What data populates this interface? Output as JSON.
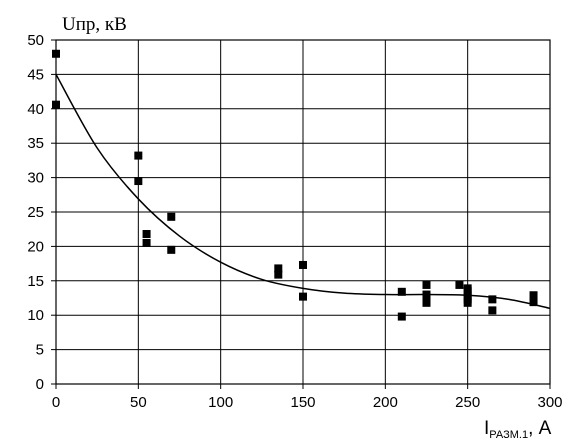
{
  "chart_data": {
    "type": "scatter",
    "ylabel": "Uпр, кВ",
    "xlabel_main": "I",
    "xlabel_sub": "РАЗМ.1",
    "xlabel_unit": ", A",
    "xlim": [
      0,
      300
    ],
    "ylim": [
      0,
      50
    ],
    "x_ticks": [
      "0",
      "50",
      "100",
      "150",
      "200",
      "250",
      "300"
    ],
    "y_ticks": [
      "0",
      "5",
      "10",
      "15",
      "20",
      "25",
      "30",
      "35",
      "40",
      "45",
      "50"
    ],
    "grid": true,
    "series": [
      {
        "type": "scatter",
        "marker": "square",
        "points": [
          [
            0,
            48
          ],
          [
            0,
            40.6
          ],
          [
            50,
            33.2
          ],
          [
            50,
            29.5
          ],
          [
            55,
            21.8
          ],
          [
            55,
            20.5
          ],
          [
            70,
            24.3
          ],
          [
            70,
            19.5
          ],
          [
            135,
            16.8
          ],
          [
            135,
            15.9
          ],
          [
            150,
            17.3
          ],
          [
            150,
            12.7
          ],
          [
            210,
            13.4
          ],
          [
            210,
            9.8
          ],
          [
            225,
            14.4
          ],
          [
            225,
            13.0
          ],
          [
            225,
            12.4
          ],
          [
            225,
            11.8
          ],
          [
            245,
            14.4
          ],
          [
            250,
            13.9
          ],
          [
            250,
            13.5
          ],
          [
            250,
            12.8
          ],
          [
            250,
            12.3
          ],
          [
            250,
            11.8
          ],
          [
            265,
            12.3
          ],
          [
            265,
            10.7
          ],
          [
            290,
            12.9
          ],
          [
            290,
            11.9
          ]
        ]
      },
      {
        "type": "line",
        "points": [
          [
            0,
            45
          ],
          [
            25,
            34.3
          ],
          [
            50,
            26.9
          ],
          [
            75,
            21.5
          ],
          [
            100,
            17.7
          ],
          [
            125,
            15.2
          ],
          [
            150,
            13.9
          ],
          [
            175,
            13.2
          ],
          [
            200,
            13.0
          ],
          [
            225,
            13.0
          ],
          [
            250,
            12.9
          ],
          [
            275,
            12.3
          ],
          [
            300,
            11.0
          ]
        ]
      }
    ]
  }
}
